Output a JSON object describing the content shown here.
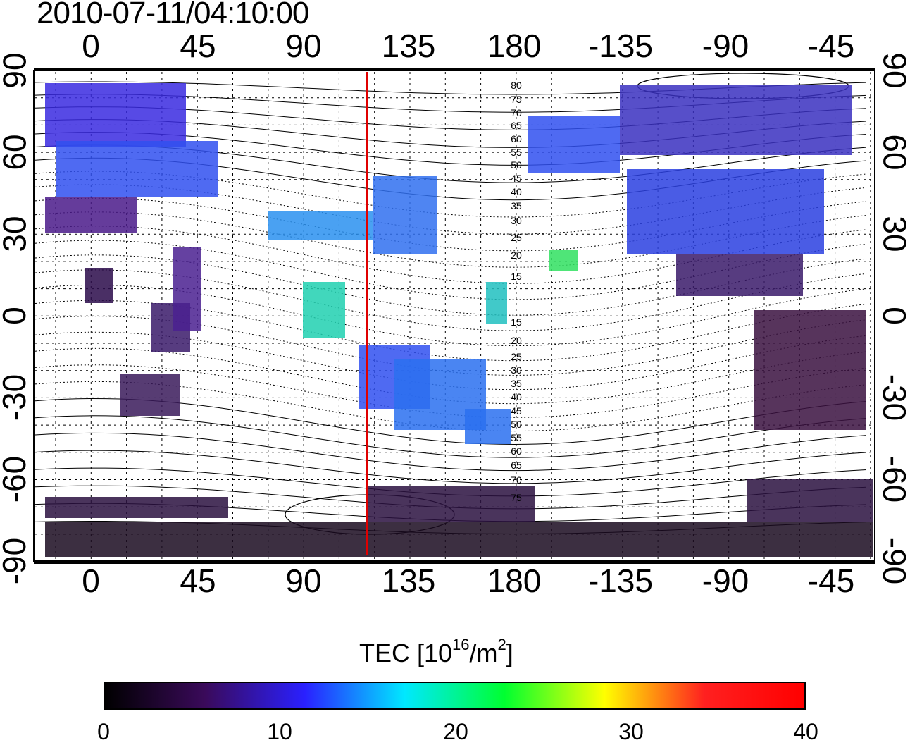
{
  "title": "2010-07-11/04:10:00",
  "map": {
    "lon_ticks_top": [
      "0",
      "45",
      "90",
      "135",
      "180",
      "-135",
      "-90",
      "-45"
    ],
    "lon_ticks_bottom": [
      "0",
      "45",
      "90",
      "135",
      "180",
      "-135",
      "-90",
      "-45"
    ],
    "lat_ticks_left": [
      "90",
      "60",
      "30",
      "0",
      "-30",
      "-60",
      "-90"
    ],
    "lat_ticks_right": [
      "90",
      "60",
      "30",
      "0",
      "-30",
      "-60",
      "-90"
    ],
    "contour_labels": [
      "80",
      "75",
      "70",
      "65",
      "60",
      "55",
      "50",
      "45",
      "40",
      "35",
      "30",
      "25",
      "20",
      "15",
      "15",
      "20",
      "25",
      "30",
      "35",
      "40",
      "45",
      "50",
      "55",
      "60",
      "65",
      "70",
      "75"
    ],
    "meridian_marker_color": "#e00000"
  },
  "colorbar": {
    "title_main": "TEC  [10",
    "title_exp": "16",
    "title_mid": "/m",
    "title_exp2": "2",
    "title_end": "]",
    "ticks": [
      "0",
      "10",
      "20",
      "30",
      "40"
    ],
    "colors": [
      "#000000",
      "#3a0a5a",
      "#2a20ff",
      "#00e8ff",
      "#00ff30",
      "#ffff00",
      "#ff2020",
      "#ff0000"
    ]
  }
}
